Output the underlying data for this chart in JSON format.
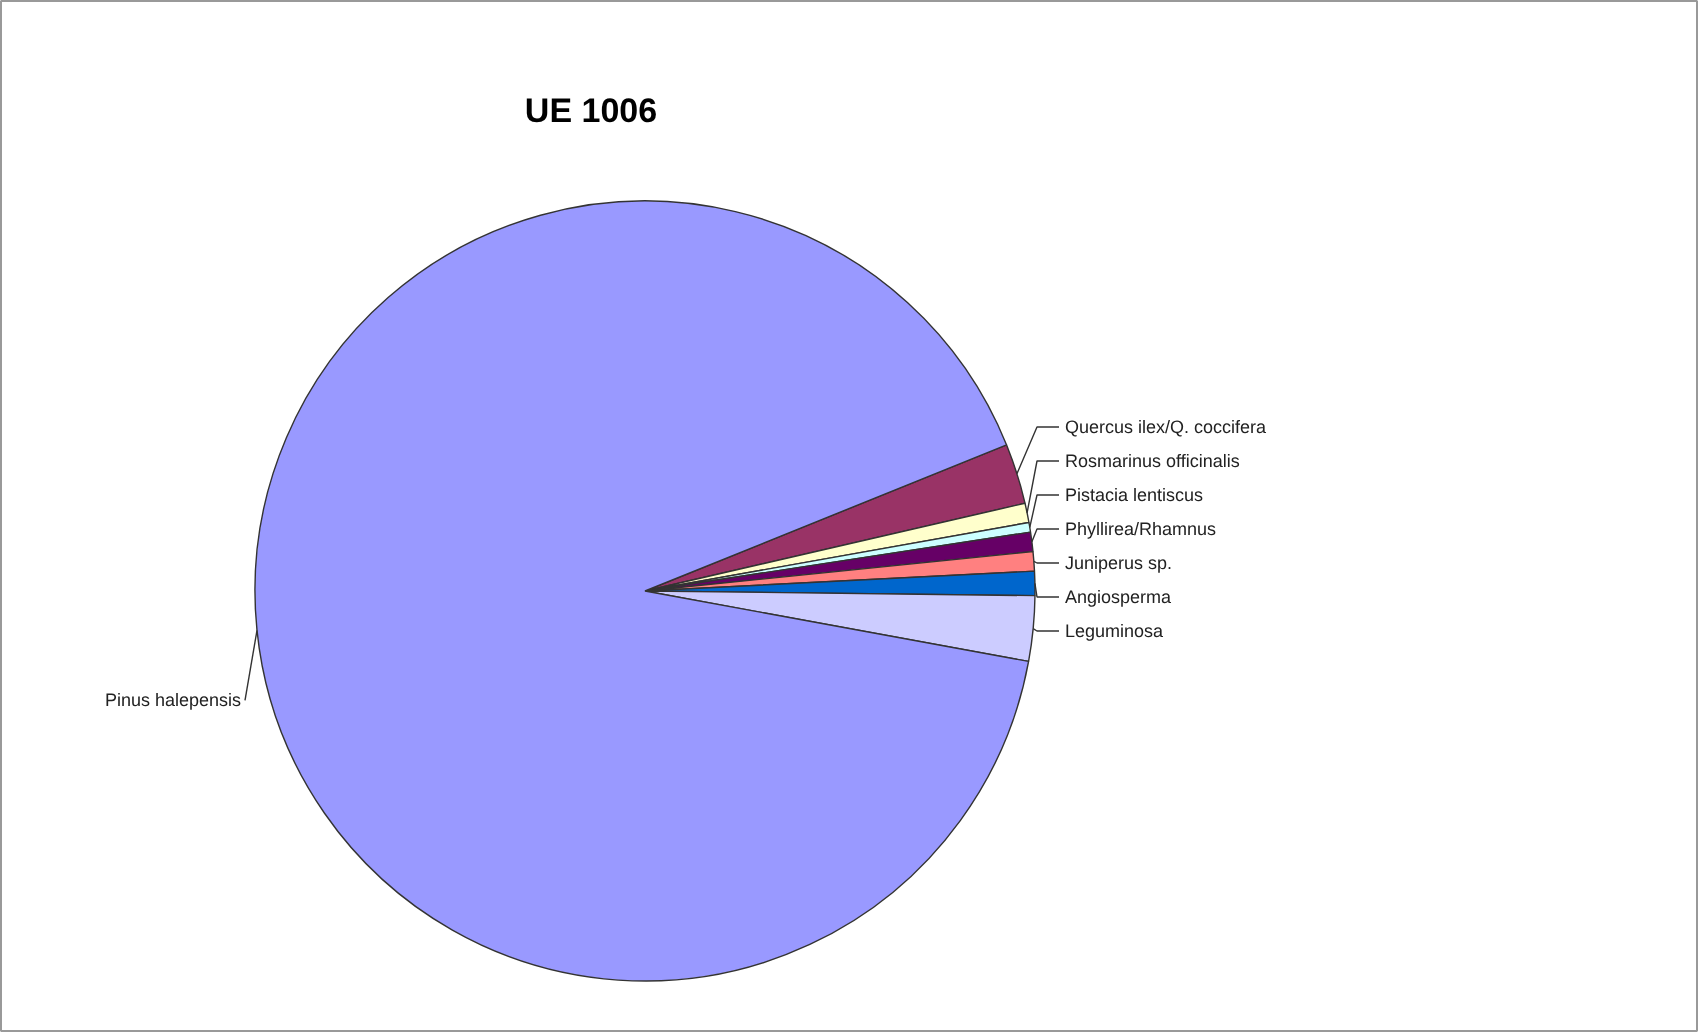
{
  "chart_data": {
    "type": "pie",
    "title": "UE 1006",
    "categories": [
      "Quercus ilex/Q. coccifera",
      "Rosmarinus officinalis",
      "Pistacia lentiscus",
      "Phyllirea/Rhamnus",
      "Juniperus sp.",
      "Angiosperma",
      "Leguminosa",
      "Pinus halepensis"
    ],
    "values": [
      2.5,
      0.8,
      0.4,
      0.8,
      0.8,
      1.0,
      2.7,
      91.0
    ],
    "colors": [
      "#993366",
      "#ffffcc",
      "#ccffff",
      "#660066",
      "#ff8080",
      "#0066cc",
      "#ccccff",
      "#9999ff"
    ]
  }
}
